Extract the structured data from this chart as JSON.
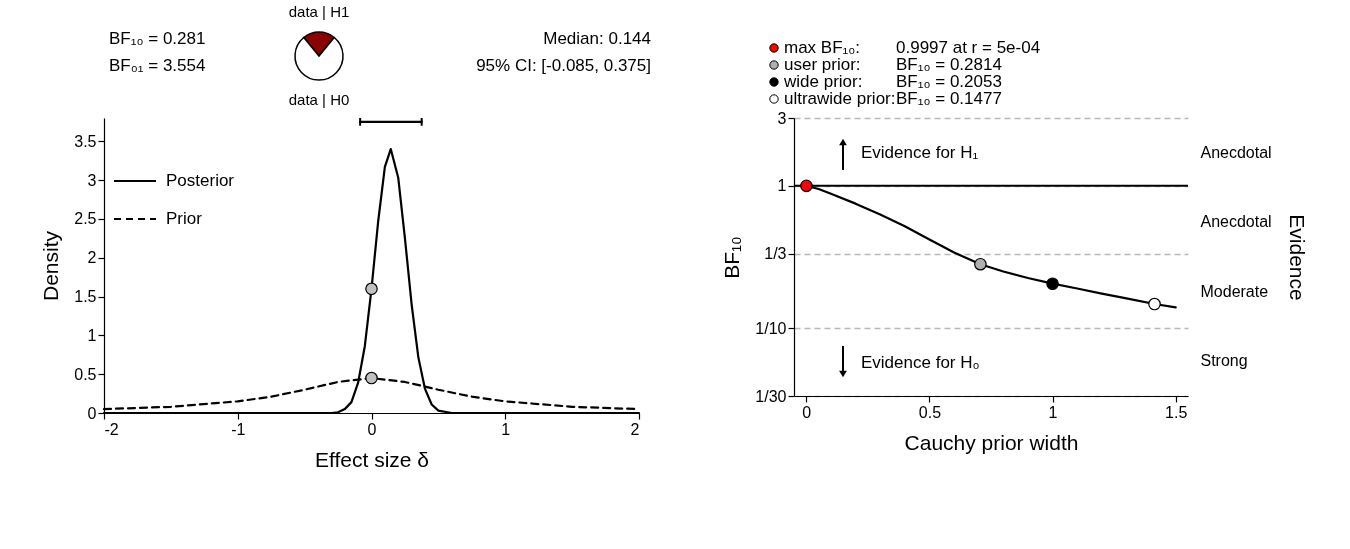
{
  "chart_data": [
    {
      "type": "pie",
      "categories": [
        "data | H1",
        "data | H0"
      ],
      "values": [
        21.9,
        78.1
      ],
      "colors": [
        "#8b0000",
        "#ffffff"
      ],
      "annotations": [
        "BF₁₀ = 0.281",
        "BF₀₁ = 3.554"
      ]
    },
    {
      "type": "line",
      "xlabel": "Effect size δ",
      "ylabel": "Density",
      "xlim": [
        -2,
        2
      ],
      "xticks": [
        -2,
        -1,
        0,
        1,
        2
      ],
      "ylim": [
        0,
        3.8
      ],
      "yticks": [
        0,
        0.5,
        1,
        1.5,
        2,
        2.5,
        3,
        3.5
      ],
      "legend": "top left",
      "annotations": [
        "Median: 0.144",
        "95% CI: [-0.085, 0.375]"
      ],
      "series": [
        {
          "name": "Posterior",
          "color": "#000000",
          "line_style": "solid",
          "x": [
            -2,
            -1,
            -0.5,
            -0.35,
            -0.3,
            -0.25,
            -0.2,
            -0.15,
            -0.1,
            -0.05,
            0,
            0.05,
            0.1,
            0.144,
            0.2,
            0.25,
            0.3,
            0.35,
            0.4,
            0.45,
            0.5,
            0.6,
            1,
            2
          ],
          "values": [
            0,
            0,
            0,
            0,
            0,
            0.01,
            0.05,
            0.14,
            0.39,
            0.86,
            1.6,
            2.47,
            3.17,
            3.4,
            3.03,
            2.25,
            1.4,
            0.72,
            0.31,
            0.11,
            0.03,
            0,
            0,
            0
          ]
        },
        {
          "name": "Prior",
          "color": "#000000",
          "line_style": "dashed",
          "x": [
            -2,
            -1.5,
            -1,
            -0.75,
            -0.5,
            -0.25,
            0,
            0.25,
            0.5,
            0.75,
            1,
            1.5,
            2
          ],
          "values": [
            0.05,
            0.08,
            0.15,
            0.21,
            0.3,
            0.4,
            0.45,
            0.4,
            0.3,
            0.21,
            0.15,
            0.08,
            0.05
          ]
        },
        {
          "type": "scatter",
          "color": "#c0c0c0",
          "marker": "circle",
          "x": [
            0,
            0
          ],
          "values": [
            1.6,
            0.45
          ]
        },
        {
          "type": "line",
          "color": "#000000",
          "line_style": "solid",
          "x": [
            -0.085,
            0.375
          ],
          "values": [
            3.75,
            3.75
          ],
          "errors": [
            [
              3.7,
              3.8
            ],
            [
              3.7,
              3.8
            ]
          ]
        }
      ]
    },
    {
      "type": "line",
      "xlabel": "Cauchy prior width",
      "ylabel": "BF₁₀",
      "y2label": "Evidence",
      "xlim": [
        -0.05,
        1.55
      ],
      "xticks": [
        0,
        0.5,
        1,
        1.5
      ],
      "ylim": [
        0.03333,
        3
      ],
      "yticks": [
        {
          "value": 0.03333,
          "label": "1/30"
        },
        {
          "value": 0.1,
          "label": "1/10"
        },
        {
          "value": 0.3333,
          "label": "1/3"
        },
        1,
        3
      ],
      "y2_categories": [
        "Anecdotal",
        "Anecdotal",
        "Moderate",
        "Strong"
      ],
      "log": "y",
      "grid": "y",
      "legend": "top left",
      "ref_lines": [
        {
          "axis": "y",
          "value": 1,
          "color": "#000000",
          "line_style": "solid"
        }
      ],
      "annotations": [
        "0.9997 at r = 5e-04",
        "BF₁₀ = 0.2814",
        "BF₁₀ = 0.2053",
        "BF₁₀ = 0.1477",
        "Evidence for H₁",
        "Evidence for H₀"
      ],
      "series": [
        {
          "color": "#000000",
          "line_style": "solid",
          "x": [
            0,
            0.05,
            0.1,
            0.2,
            0.3,
            0.4,
            0.5,
            0.6,
            0.707,
            0.8,
            0.9,
            1,
            1.1,
            1.2,
            1.3,
            1.414,
            1.5
          ],
          "values": [
            1,
            0.95,
            0.88,
            0.75,
            0.63,
            0.52,
            0.42,
            0.34,
            0.2814,
            0.25,
            0.225,
            0.2053,
            0.19,
            0.175,
            0.162,
            0.1477,
            0.14
          ]
        },
        {
          "type": "scatter",
          "name": "max BF₁₀:",
          "color": "#ff0000",
          "marker": "circle",
          "x": [
            0.0005
          ],
          "values": [
            0.9997
          ]
        },
        {
          "type": "scatter",
          "name": "user prior:",
          "color": "#b0b0b0",
          "marker": "circle",
          "x": [
            0.707
          ],
          "values": [
            0.2814
          ]
        },
        {
          "type": "scatter",
          "name": "wide prior:",
          "color": "#000000",
          "marker": "circle",
          "x": [
            1
          ],
          "values": [
            0.2053
          ]
        },
        {
          "type": "scatter",
          "name": "ultrawide prior:",
          "color": "#ffffff",
          "marker": "circle",
          "x": [
            1.414
          ],
          "values": [
            0.1477
          ]
        }
      ]
    }
  ]
}
